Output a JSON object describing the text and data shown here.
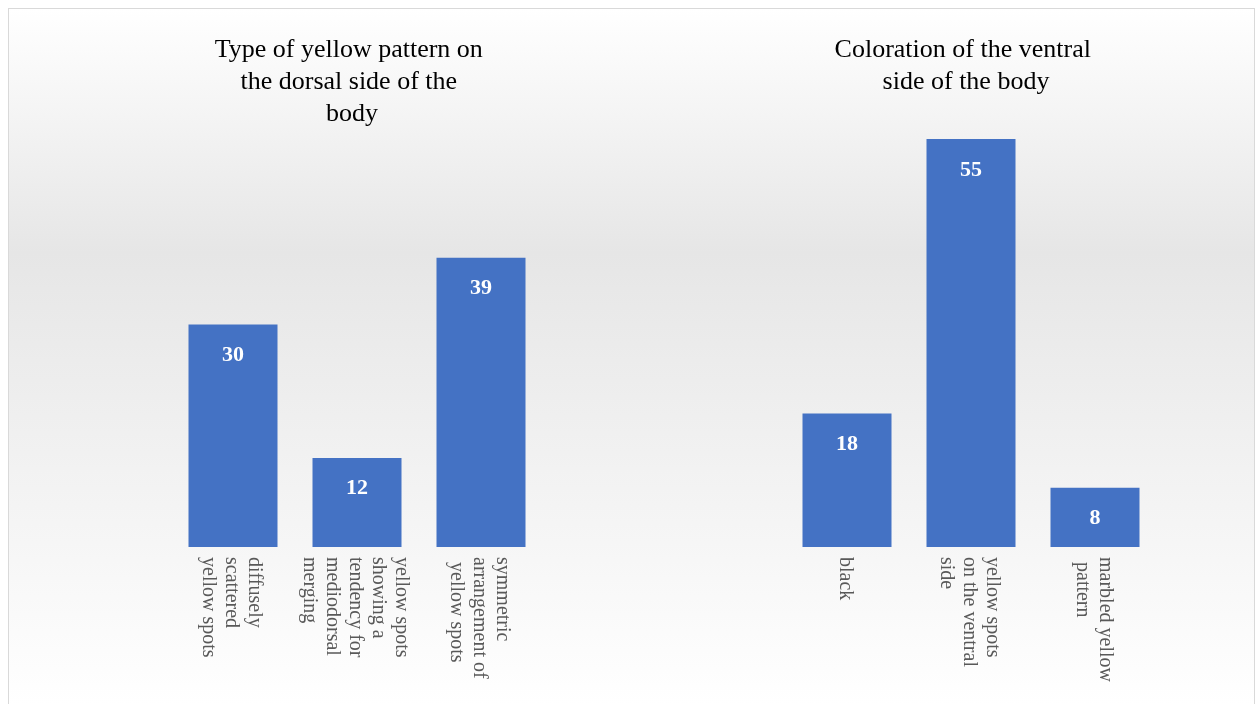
{
  "chart_data": [
    {
      "type": "bar",
      "title": "Type of yellow pattern on the dorsal side of the body",
      "categories": [
        "diffusely scattered yellow spots",
        "yellow spots showing a tendency for mediodorsal merging",
        "symmetric arrangement of yellow spots"
      ],
      "values": [
        30,
        12,
        39
      ],
      "color": "#4472c4",
      "data_labels": true
    },
    {
      "type": "bar",
      "title": "Coloration of the ventral side of the body",
      "categories": [
        "black",
        "yellow spots on the ventral side",
        "marbled yellow pattern"
      ],
      "values": [
        18,
        55,
        8
      ],
      "color": "#4472c4",
      "data_labels": true
    }
  ]
}
